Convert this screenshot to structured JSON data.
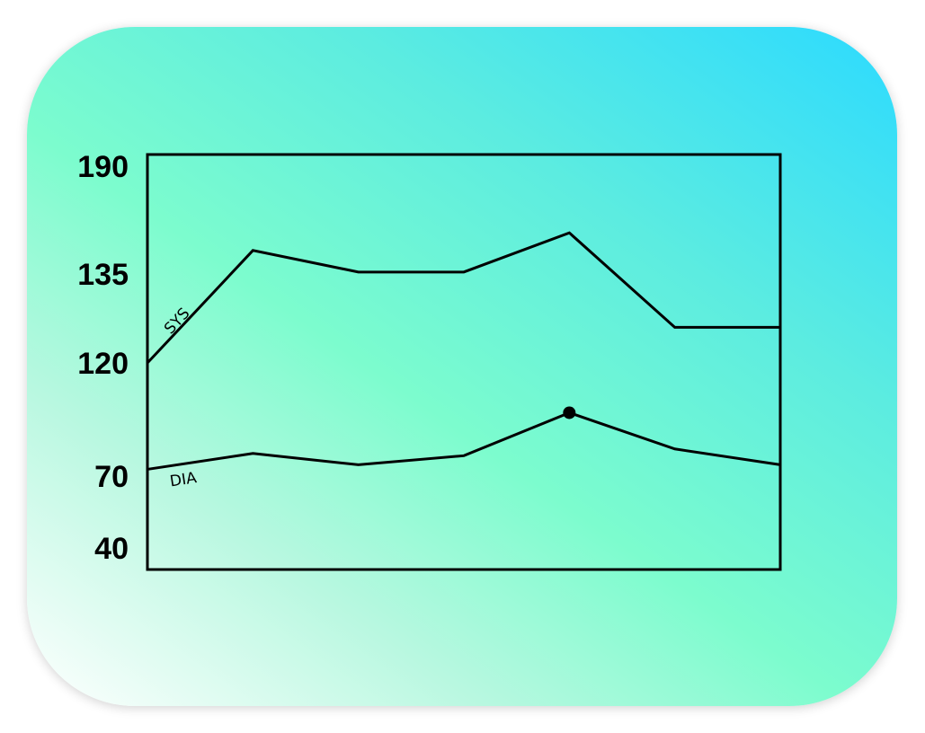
{
  "chart_data": {
    "type": "line",
    "title": "",
    "xlabel": "",
    "ylabel": "",
    "x": [
      1,
      2,
      3,
      4,
      5,
      6,
      7
    ],
    "y_ticks": [
      190,
      135,
      120,
      70,
      40
    ],
    "series": [
      {
        "name": "SYS",
        "values": [
          120,
          147,
          136,
          136,
          156,
          126,
          126
        ]
      },
      {
        "name": "DIA",
        "values": [
          73,
          80,
          75,
          79,
          98,
          82,
          75
        ]
      }
    ],
    "highlight": {
      "series": "DIA",
      "index": 4
    },
    "grid": false,
    "legend": "inline",
    "line_color": "#000000"
  }
}
